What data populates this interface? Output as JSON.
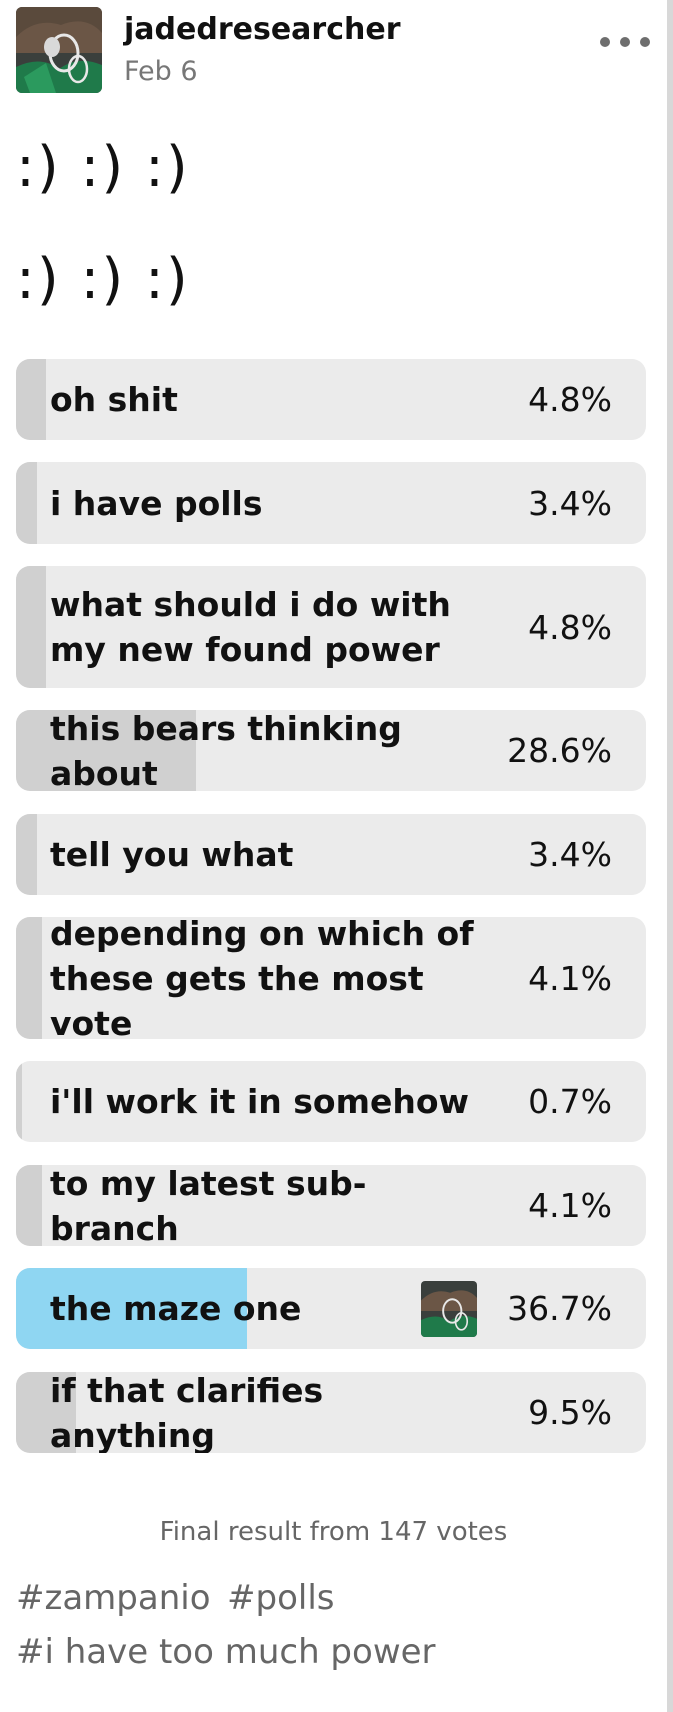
{
  "post": {
    "username": "jadedresearcher",
    "date": "Feb 6",
    "more_icon": "ellipsis-icon",
    "lines": [
      ":) :) :)",
      ":) :) :)"
    ]
  },
  "poll": {
    "options": [
      {
        "label": "oh shit",
        "pct": "4.8%",
        "fraction": 0.048
      },
      {
        "label": "i have polls",
        "pct": "3.4%",
        "fraction": 0.034
      },
      {
        "label": "what should i do with my new found power",
        "pct": "4.8%",
        "fraction": 0.048
      },
      {
        "label": "this bears thinking about",
        "pct": "28.6%",
        "fraction": 0.286
      },
      {
        "label": "tell you what",
        "pct": "3.4%",
        "fraction": 0.034
      },
      {
        "label": "depending on which of these gets the most vote",
        "pct": "4.1%",
        "fraction": 0.041
      },
      {
        "label": "i'll work it in somehow",
        "pct": "0.7%",
        "fraction": 0.007
      },
      {
        "label": "to my latest sub-branch",
        "pct": "4.1%",
        "fraction": 0.041
      },
      {
        "label": "the maze one",
        "pct": "36.7%",
        "fraction": 0.367
      },
      {
        "label": "if that clarifies anything",
        "pct": "9.5%",
        "fraction": 0.095
      }
    ],
    "winner_color": "#8fd6f2",
    "bar_color": "#d0d0d0",
    "track_color": "#ebebeb",
    "footer": "Final result from 147 votes"
  },
  "tags": [
    "#zampanio",
    "#polls",
    "#i have too much power"
  ]
}
